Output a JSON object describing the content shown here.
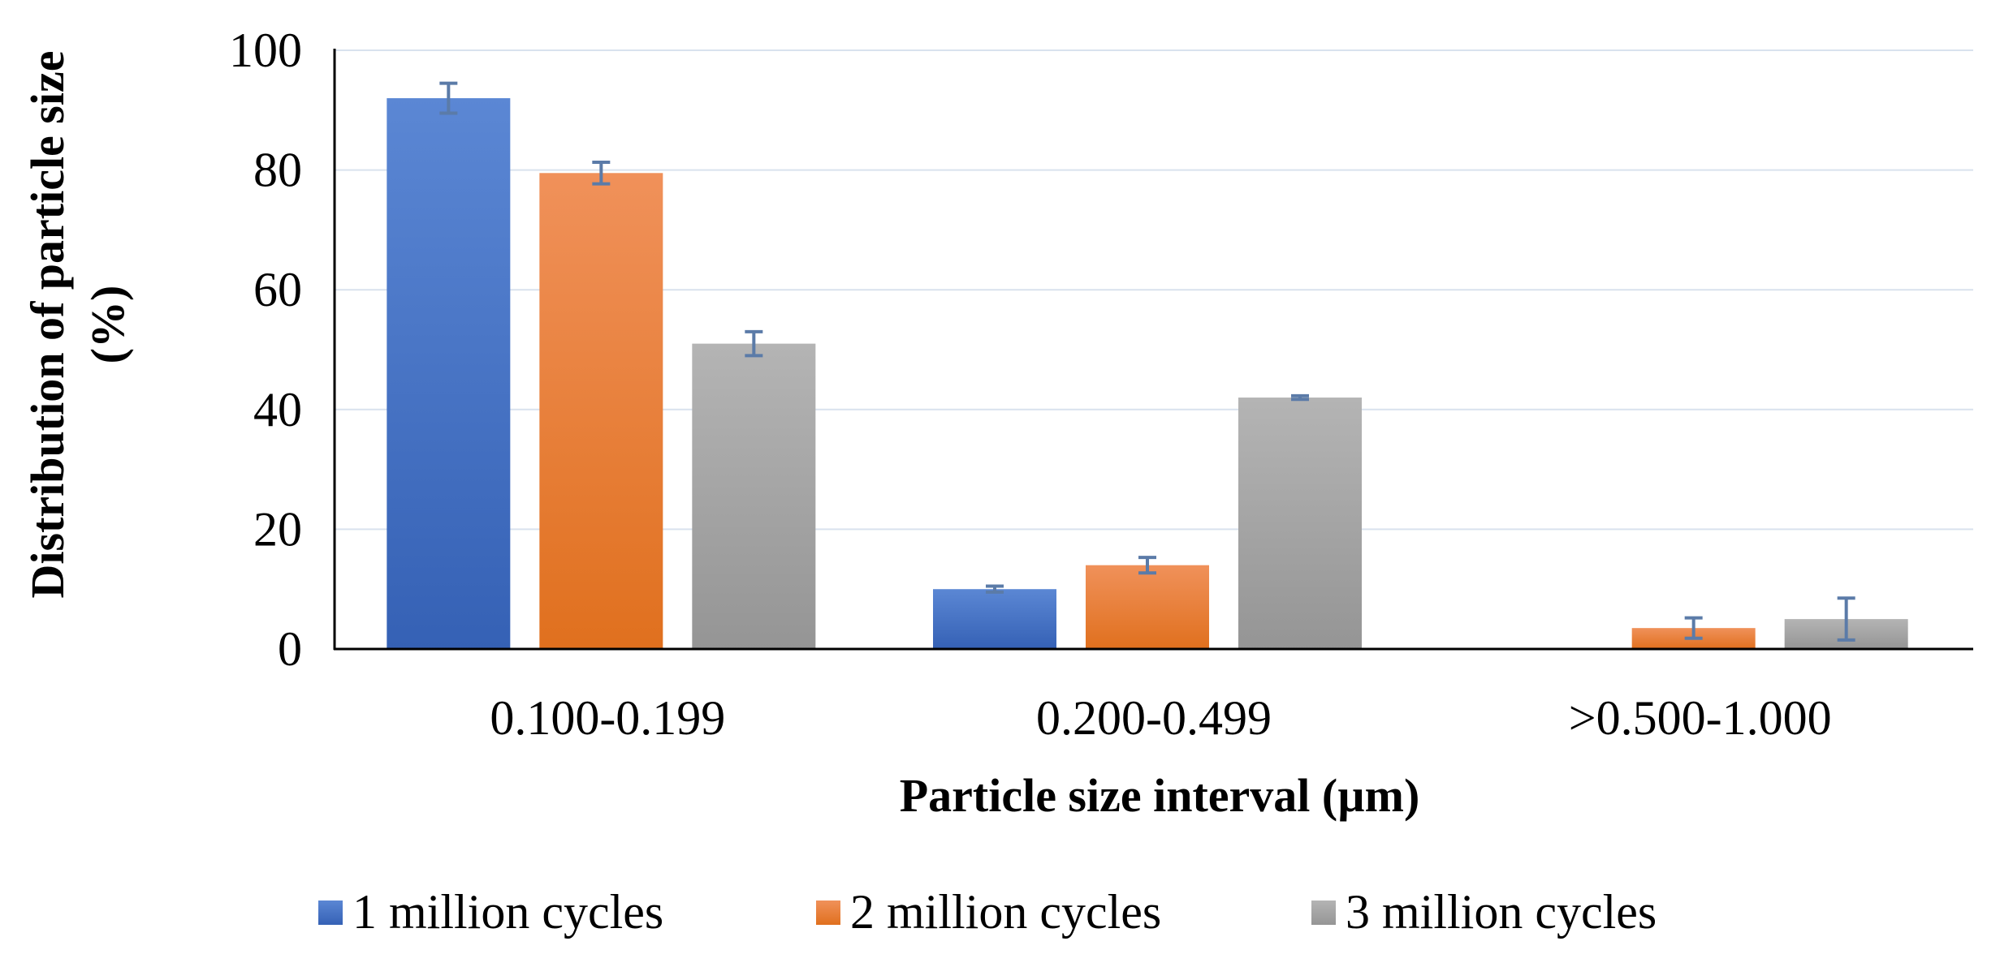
{
  "chart_data": {
    "type": "bar",
    "title": "",
    "xlabel": "Particle size interval (µm)",
    "ylabel_line1": "Distribution of particle size",
    "ylabel_line2": "(%)",
    "ylim": [
      0,
      100
    ],
    "yticks": [
      0,
      20,
      40,
      60,
      80,
      100
    ],
    "ytick_labels": [
      "0",
      "20",
      "40",
      "60",
      "80",
      "100"
    ],
    "grid": true,
    "legend_position": "bottom",
    "categories": [
      "0.100-0.199",
      "0.200-0.499",
      ">0.500-1.000"
    ],
    "series": [
      {
        "name": "1 million cycles",
        "color": "#4472C4",
        "color_light": "#5B87D4",
        "color_dark": "#3561B5",
        "values": [
          92,
          10,
          0
        ],
        "errors": [
          2.5,
          0.5,
          0
        ]
      },
      {
        "name": "2 million cycles",
        "color": "#ED7D31",
        "color_light": "#F0915A",
        "color_dark": "#E0701E",
        "values": [
          79.5,
          14,
          3.5
        ],
        "errors": [
          1.8,
          1.3,
          1.7
        ]
      },
      {
        "name": "3 million cycles",
        "color": "#A5A5A5",
        "color_light": "#B4B4B4",
        "color_dark": "#959595",
        "values": [
          51,
          42,
          5
        ],
        "errors": [
          2,
          0.3,
          3.5
        ]
      }
    ],
    "error_bar_color": "#5B7BA8",
    "gridline_color": "#D9E2EE",
    "axis_color": "#000000"
  }
}
